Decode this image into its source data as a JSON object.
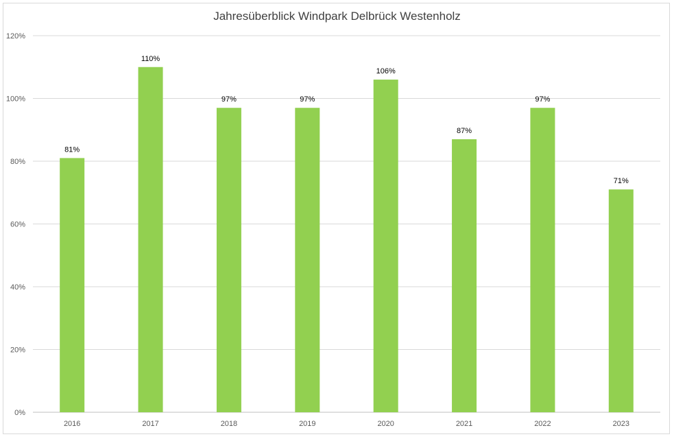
{
  "chart_data": {
    "type": "bar",
    "title": "Jahresüberblick Windpark Delbrück Westenholz",
    "xlabel": "",
    "ylabel": "",
    "categories": [
      "2016",
      "2017",
      "2018",
      "2019",
      "2020",
      "2021",
      "2022",
      "2023"
    ],
    "values": [
      0.81,
      1.1,
      0.97,
      0.97,
      1.06,
      0.87,
      0.97,
      0.71
    ],
    "data_labels": [
      "81%",
      "110%",
      "97%",
      "97%",
      "106%",
      "87%",
      "97%",
      "71%"
    ],
    "ylim": [
      0,
      1.2
    ],
    "y_ticks": [
      0,
      0.2,
      0.4,
      0.6,
      0.8,
      1.0,
      1.2
    ],
    "y_tick_labels": [
      "0%",
      "20%",
      "40%",
      "60%",
      "80%",
      "100%",
      "120%"
    ],
    "grid": true,
    "legend": "none",
    "bar_color": "#92d050"
  }
}
